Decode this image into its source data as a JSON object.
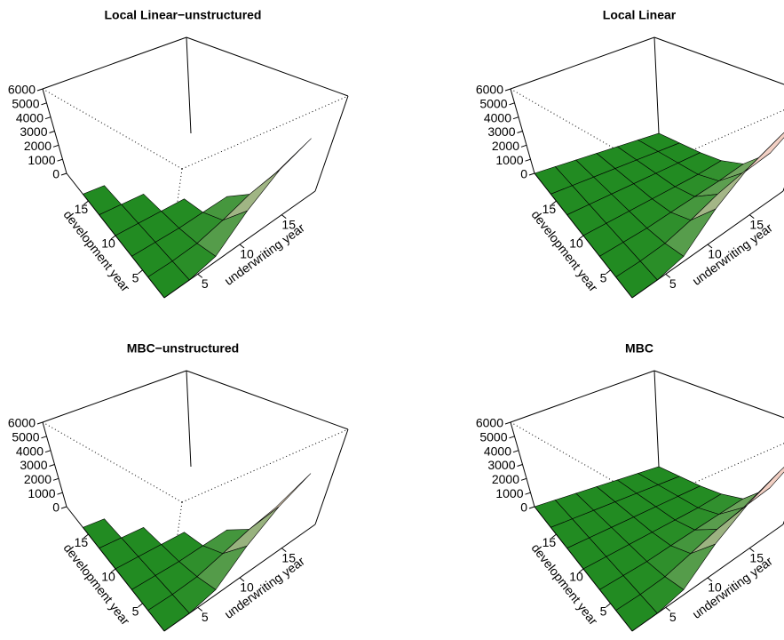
{
  "chart_data": [
    {
      "type": "surface",
      "title": "Local Linear−unstructured",
      "x_label": "underwriting year",
      "y_label": "development year",
      "x": [
        1,
        4,
        7,
        10,
        13,
        16,
        19
      ],
      "y": [
        1,
        4,
        7,
        10,
        13,
        16,
        19
      ],
      "z": [
        [
          0,
          0,
          300,
          1800,
          3200,
          4200,
          5300
        ],
        [
          0,
          0,
          100,
          500,
          1100,
          1500,
          null
        ],
        [
          0,
          0,
          0,
          100,
          200,
          null,
          null
        ],
        [
          0,
          0,
          0,
          0,
          null,
          null,
          null
        ],
        [
          0,
          0,
          0,
          null,
          null,
          null,
          null
        ],
        [
          0,
          0,
          null,
          null,
          null,
          null,
          null
        ],
        [
          0,
          null,
          null,
          null,
          null,
          null,
          null
        ]
      ],
      "xlim": [
        1,
        19
      ],
      "ylim": [
        1,
        19
      ],
      "zlim": [
        0,
        6000
      ],
      "xticks": [
        5,
        10,
        15
      ],
      "yticks": [
        5,
        10,
        15
      ],
      "zticks": [
        0,
        1000,
        2000,
        3000,
        4000,
        5000,
        6000
      ],
      "surface_colors": [
        "#228B22",
        "#F2D0C4"
      ]
    },
    {
      "type": "surface",
      "title": "Local Linear",
      "x_label": "underwriting year",
      "y_label": "development year",
      "x": [
        1,
        4,
        7,
        10,
        13,
        16,
        19
      ],
      "y": [
        1,
        4,
        7,
        10,
        13,
        16,
        19
      ],
      "z": [
        [
          0,
          0,
          300,
          1900,
          3300,
          4300,
          5400
        ],
        [
          0,
          0,
          100,
          500,
          1100,
          1500,
          1800
        ],
        [
          0,
          0,
          0,
          100,
          200,
          300,
          500
        ],
        [
          0,
          0,
          0,
          0,
          0,
          0,
          100
        ],
        [
          0,
          0,
          0,
          0,
          0,
          0,
          0
        ],
        [
          0,
          0,
          0,
          0,
          0,
          0,
          0
        ],
        [
          0,
          0,
          0,
          0,
          0,
          0,
          0
        ]
      ],
      "xlim": [
        1,
        19
      ],
      "ylim": [
        1,
        19
      ],
      "zlim": [
        0,
        6000
      ],
      "xticks": [
        5,
        10,
        15
      ],
      "yticks": [
        5,
        10,
        15
      ],
      "zticks": [
        0,
        1000,
        2000,
        3000,
        4000,
        5000,
        6000
      ],
      "surface_colors": [
        "#228B22",
        "#F2D0C4"
      ]
    },
    {
      "type": "surface",
      "title": "MBC−unstructured",
      "x_label": "underwriting year",
      "y_label": "development year",
      "x": [
        1,
        4,
        7,
        10,
        13,
        16,
        19
      ],
      "y": [
        1,
        4,
        7,
        10,
        13,
        16,
        19
      ],
      "z": [
        [
          0,
          0,
          300,
          1700,
          3000,
          4100,
          5200
        ],
        [
          0,
          0,
          100,
          500,
          1000,
          1400,
          null
        ],
        [
          0,
          0,
          0,
          100,
          200,
          null,
          null
        ],
        [
          0,
          0,
          0,
          0,
          null,
          null,
          null
        ],
        [
          0,
          0,
          0,
          null,
          null,
          null,
          null
        ],
        [
          0,
          0,
          null,
          null,
          null,
          null,
          null
        ],
        [
          0,
          null,
          null,
          null,
          null,
          null,
          null
        ]
      ],
      "xlim": [
        1,
        19
      ],
      "ylim": [
        1,
        19
      ],
      "zlim": [
        0,
        6000
      ],
      "xticks": [
        5,
        10,
        15
      ],
      "yticks": [
        5,
        10,
        15
      ],
      "zticks": [
        0,
        1000,
        2000,
        3000,
        4000,
        5000,
        6000
      ],
      "surface_colors": [
        "#228B22",
        "#F2D0C4"
      ]
    },
    {
      "type": "surface",
      "title": "MBC",
      "x_label": "underwriting year",
      "y_label": "development year",
      "x": [
        1,
        4,
        7,
        10,
        13,
        16,
        19
      ],
      "y": [
        1,
        4,
        7,
        10,
        13,
        16,
        19
      ],
      "z": [
        [
          0,
          0,
          300,
          1800,
          3100,
          4200,
          5300
        ],
        [
          0,
          0,
          100,
          500,
          1000,
          1400,
          1700
        ],
        [
          0,
          0,
          0,
          100,
          200,
          300,
          400
        ],
        [
          0,
          0,
          0,
          0,
          0,
          0,
          100
        ],
        [
          0,
          0,
          0,
          0,
          0,
          0,
          0
        ],
        [
          0,
          0,
          0,
          0,
          0,
          0,
          0
        ],
        [
          0,
          0,
          0,
          0,
          0,
          0,
          0
        ]
      ],
      "xlim": [
        1,
        19
      ],
      "ylim": [
        1,
        19
      ],
      "zlim": [
        0,
        6000
      ],
      "xticks": [
        5,
        10,
        15
      ],
      "yticks": [
        5,
        10,
        15
      ],
      "zticks": [
        0,
        1000,
        2000,
        3000,
        4000,
        5000,
        6000
      ],
      "surface_colors": [
        "#228B22",
        "#F2D0C4"
      ]
    }
  ]
}
